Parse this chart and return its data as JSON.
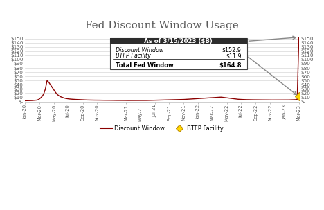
{
  "title": "Fed Discount Window Usage",
  "title_color": "#5a5a5a",
  "line_color": "#8B0000",
  "btfp_color": "#FFD700",
  "btfp_edge_color": "#B8860B",
  "background_color": "#FFFFFF",
  "grid_color": "#d8d8d8",
  "ylim": [
    0,
    160
  ],
  "ytick_labels": [
    "$-",
    "$10",
    "$20",
    "$30",
    "$40",
    "$50",
    "$60",
    "$70",
    "$80",
    "$90",
    "$100",
    "$110",
    "$120",
    "$130",
    "$140",
    "$150"
  ],
  "ytick_values": [
    0,
    10,
    20,
    30,
    40,
    50,
    60,
    70,
    80,
    90,
    100,
    110,
    120,
    130,
    140,
    150
  ],
  "xtick_labels": [
    "Jan-20",
    "Mar-20",
    "May-20",
    "Jul-20",
    "Sep-20",
    "Nov-20",
    "Mar-21",
    "May-21",
    "Jul-21",
    "Sep-21",
    "Nov-21",
    "Jan-22",
    "Mar-22",
    "May-22",
    "Jul-22",
    "Sep-22",
    "Nov-22",
    "Jan-23",
    "Mar-23"
  ],
  "xtick_months": [
    0,
    2,
    4,
    6,
    8,
    10,
    14,
    16,
    18,
    20,
    22,
    24,
    26,
    28,
    30,
    32,
    34,
    36,
    38
  ],
  "total_months": 38,
  "box_title": "As of 3/15/2023 ($B)",
  "box_bg": "#2d2d2d",
  "box_text_color": "#FFFFFF",
  "label1": "Discount Window",
  "value1": "$152.9",
  "label2": "BTFP Facility",
  "value2": "$11.9",
  "label3": "Total Fed Window",
  "value3": "$164.8",
  "legend_line_label": "Discount Window",
  "legend_diamond_label": "BTFP Facility",
  "discount_window_data": [
    2.0,
    2.1,
    2.2,
    2.3,
    2.5,
    2.8,
    3.2,
    3.5,
    5.0,
    8.0,
    12.0,
    18.0,
    30.0,
    50.0,
    46.0,
    40.0,
    34.0,
    28.0,
    22.0,
    17.0,
    14.0,
    11.5,
    10.0,
    8.5,
    7.5,
    6.8,
    6.2,
    5.8,
    5.5,
    5.2,
    5.0,
    4.8,
    4.5,
    4.3,
    4.1,
    4.0,
    3.8,
    3.7,
    3.6,
    3.5,
    3.5,
    3.4,
    3.4,
    3.3,
    3.3,
    3.2,
    3.2,
    3.1,
    3.1,
    3.0,
    3.0,
    3.0,
    2.9,
    2.9,
    2.8,
    2.8,
    2.8,
    2.7,
    2.7,
    2.7,
    2.6,
    2.6,
    2.6,
    2.5,
    2.5,
    2.5,
    2.5,
    2.5,
    2.5,
    2.6,
    2.6,
    2.7,
    2.7,
    2.8,
    2.9,
    3.0,
    3.1,
    3.2,
    3.3,
    3.4,
    3.5,
    3.5,
    3.6,
    3.7,
    3.8,
    3.9,
    4.0,
    4.1,
    4.2,
    4.3,
    4.4,
    4.5,
    4.6,
    4.8,
    5.0,
    5.2,
    5.5,
    5.8,
    6.0,
    6.2,
    6.5,
    6.8,
    7.0,
    7.3,
    7.5,
    7.8,
    8.0,
    8.3,
    8.5,
    8.8,
    9.0,
    9.3,
    9.5,
    9.8,
    10.0,
    10.3,
    10.5,
    10.0,
    9.5,
    9.0,
    8.5,
    8.0,
    7.5,
    7.0,
    6.5,
    6.0,
    5.5,
    5.2,
    5.0,
    4.8,
    4.6,
    4.5,
    4.4,
    4.3,
    4.3,
    4.2,
    4.2,
    4.1,
    4.1,
    4.0,
    4.0,
    4.0,
    3.9,
    3.9,
    3.9,
    3.8,
    3.8,
    3.8,
    3.7,
    3.7,
    3.7,
    3.7,
    3.7,
    3.7,
    3.8,
    3.8,
    3.9,
    4.0,
    4.1,
    4.3,
    4.5,
    5.0,
    152.9
  ],
  "btfp_y": 11.9
}
